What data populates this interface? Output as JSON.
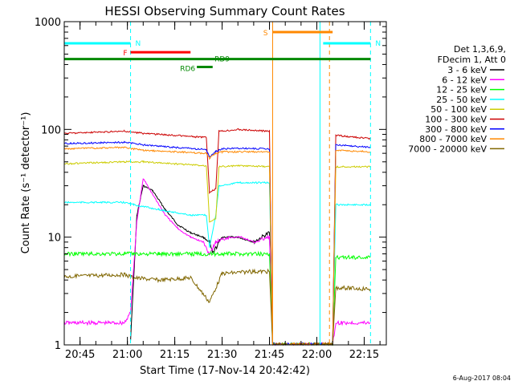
{
  "chart_data": {
    "type": "line",
    "title": "HESSI Observing Summary Count Rates",
    "xlabel": "Start Time (17-Nov-14 20:42:42)",
    "ylabel": "Count Rate (s⁻¹ detector⁻¹)",
    "yscale": "log",
    "ylim": [
      1,
      1000
    ],
    "xlim": [
      "20:40",
      "22:22"
    ],
    "x_ticks": [
      "20:45",
      "21:00",
      "21:15",
      "21:30",
      "21:45",
      "22:00",
      "22:15"
    ],
    "y_ticks": [
      "1",
      "10",
      "100",
      "1000"
    ],
    "legend_header": [
      "Det 1,3,6,9,",
      "FDecim 1, Att 0"
    ],
    "legend_position": "right",
    "grid": false,
    "series": [
      {
        "name": "3 - 6 keV",
        "color": "#000000",
        "points": [
          [
            "21:01",
            1.1
          ],
          [
            "21:03",
            16
          ],
          [
            "21:05",
            30
          ],
          [
            "21:08",
            27
          ],
          [
            "21:12",
            18
          ],
          [
            "21:16",
            13
          ],
          [
            "21:20",
            11
          ],
          [
            "21:24",
            10
          ],
          [
            "21:26",
            9
          ],
          [
            "21:27",
            7
          ],
          [
            "21:30",
            10
          ],
          [
            "21:35",
            10
          ],
          [
            "21:40",
            9
          ],
          [
            "21:45",
            11
          ],
          [
            "21:46",
            1
          ]
        ]
      },
      {
        "name": "6 - 12 keV",
        "color": "#ff00ff",
        "points": [
          [
            "20:40",
            1.6
          ],
          [
            "20:59",
            1.6
          ],
          [
            "21:01",
            2
          ],
          [
            "21:03",
            14
          ],
          [
            "21:05",
            35
          ],
          [
            "21:08",
            25
          ],
          [
            "21:12",
            16
          ],
          [
            "21:16",
            12
          ],
          [
            "21:20",
            10
          ],
          [
            "21:24",
            9
          ],
          [
            "21:26",
            7
          ],
          [
            "21:28",
            9
          ],
          [
            "21:32",
            10
          ],
          [
            "21:36",
            10
          ],
          [
            "21:40",
            9
          ],
          [
            "21:45",
            10
          ],
          [
            "21:46",
            1
          ],
          [
            "22:05",
            1
          ],
          [
            "22:06",
            1.6
          ],
          [
            "22:17",
            1.6
          ]
        ]
      },
      {
        "name": "12 - 25 keV",
        "color": "#00ff00",
        "points": [
          [
            "20:40",
            7
          ],
          [
            "20:59",
            7
          ],
          [
            "21:02",
            7
          ],
          [
            "21:10",
            7
          ],
          [
            "21:20",
            7
          ],
          [
            "21:26",
            7
          ],
          [
            "21:30",
            7
          ],
          [
            "21:40",
            7
          ],
          [
            "21:45",
            7
          ],
          [
            "21:46",
            1
          ],
          [
            "22:05",
            1
          ],
          [
            "22:06",
            6.5
          ],
          [
            "22:17",
            6.5
          ]
        ]
      },
      {
        "name": "25 - 50 keV",
        "color": "#00ffff",
        "points": [
          [
            "20:40",
            21
          ],
          [
            "20:59",
            21
          ],
          [
            "21:02",
            20
          ],
          [
            "21:10",
            18
          ],
          [
            "21:20",
            16
          ],
          [
            "21:25",
            16
          ],
          [
            "21:26",
            8
          ],
          [
            "21:28",
            16
          ],
          [
            "21:29",
            30
          ],
          [
            "21:35",
            32
          ],
          [
            "21:40",
            32
          ],
          [
            "21:45",
            32
          ],
          [
            "21:46",
            1
          ],
          [
            "22:05",
            1
          ],
          [
            "22:06",
            20
          ],
          [
            "22:17",
            20
          ]
        ]
      },
      {
        "name": "50 - 100 keV",
        "color": "#cccc00",
        "points": [
          [
            "20:40",
            48
          ],
          [
            "20:59",
            50
          ],
          [
            "21:05",
            50
          ],
          [
            "21:15",
            48
          ],
          [
            "21:25",
            46
          ],
          [
            "21:26",
            14
          ],
          [
            "21:28",
            15
          ],
          [
            "21:29",
            45
          ],
          [
            "21:35",
            46
          ],
          [
            "21:45",
            45
          ],
          [
            "21:46",
            1
          ],
          [
            "22:05",
            1
          ],
          [
            "22:06",
            45
          ],
          [
            "22:17",
            45
          ]
        ]
      },
      {
        "name": "100 - 300 keV",
        "color": "#cc0000",
        "points": [
          [
            "20:40",
            92
          ],
          [
            "20:59",
            96
          ],
          [
            "21:05",
            92
          ],
          [
            "21:15",
            88
          ],
          [
            "21:25",
            84
          ],
          [
            "21:26",
            26
          ],
          [
            "21:28",
            28
          ],
          [
            "21:29",
            96
          ],
          [
            "21:35",
            100
          ],
          [
            "21:45",
            96
          ],
          [
            "21:46",
            1
          ],
          [
            "22:05",
            1
          ],
          [
            "22:06",
            88
          ],
          [
            "22:17",
            82
          ]
        ]
      },
      {
        "name": "300 - 800 keV",
        "color": "#0000ff",
        "points": [
          [
            "20:40",
            74
          ],
          [
            "20:59",
            76
          ],
          [
            "21:05",
            72
          ],
          [
            "21:15",
            68
          ],
          [
            "21:25",
            65
          ],
          [
            "21:26",
            55
          ],
          [
            "21:28",
            62
          ],
          [
            "21:30",
            66
          ],
          [
            "21:35",
            67
          ],
          [
            "21:45",
            66
          ],
          [
            "21:46",
            1
          ],
          [
            "22:05",
            1
          ],
          [
            "22:06",
            72
          ],
          [
            "22:17",
            68
          ]
        ]
      },
      {
        "name": "800 - 7000 keV",
        "color": "#ff8800",
        "points": [
          [
            "20:40",
            66
          ],
          [
            "20:59",
            68
          ],
          [
            "21:05",
            64
          ],
          [
            "21:15",
            62
          ],
          [
            "21:25",
            60
          ],
          [
            "21:26",
            54
          ],
          [
            "21:28",
            60
          ],
          [
            "21:30",
            62
          ],
          [
            "21:35",
            62
          ],
          [
            "21:45",
            62
          ],
          [
            "21:46",
            1
          ],
          [
            "22:05",
            1
          ],
          [
            "22:06",
            64
          ],
          [
            "22:17",
            62
          ]
        ]
      },
      {
        "name": "7000 - 20000 keV",
        "color": "#806600",
        "points": [
          [
            "20:40",
            4.3
          ],
          [
            "20:59",
            4.5
          ],
          [
            "21:02",
            4.2
          ],
          [
            "21:10",
            4.0
          ],
          [
            "21:20",
            4.2
          ],
          [
            "21:26",
            2.5
          ],
          [
            "21:30",
            4.6
          ],
          [
            "21:40",
            4.8
          ],
          [
            "21:45",
            4.8
          ],
          [
            "21:46",
            1
          ],
          [
            "22:05",
            1
          ],
          [
            "22:06",
            3.4
          ],
          [
            "22:17",
            3.3
          ]
        ]
      }
    ],
    "flags": [
      {
        "label": "N",
        "color": "#00ffff",
        "start": "20:40",
        "end": "21:01",
        "level": 630
      },
      {
        "label": "N",
        "color": "#00ffff",
        "start": "22:02",
        "end": "22:17",
        "level": 630
      },
      {
        "label": "F",
        "color": "#ff0000",
        "start": "21:01",
        "end": "21:20",
        "level": 520
      },
      {
        "label": "S",
        "color": "#ff8800",
        "start": "21:46",
        "end": "22:05",
        "level": 800
      },
      {
        "label": "RD9",
        "color": "#008800",
        "start": "20:40",
        "end": "22:17",
        "level": 450
      },
      {
        "label": "RD6",
        "color": "#008800",
        "start": "21:22",
        "end": "21:27",
        "level": 380
      }
    ],
    "markers": [
      {
        "time": "21:46",
        "color": "#ff8800",
        "style": "solid"
      },
      {
        "time": "22:01",
        "color": "#00ffff",
        "style": "solid"
      },
      {
        "time": "22:04",
        "color": "#ff8800",
        "style": "dashed"
      },
      {
        "time": "21:01",
        "color": "#00ffff",
        "style": "dashed"
      },
      {
        "time": "22:17",
        "color": "#00ffff",
        "style": "dashed"
      },
      {
        "time": "20:40",
        "color": "#00ffff",
        "style": "solid"
      }
    ]
  },
  "footer": {
    "timestamp": "6-Aug-2017 08:04"
  }
}
